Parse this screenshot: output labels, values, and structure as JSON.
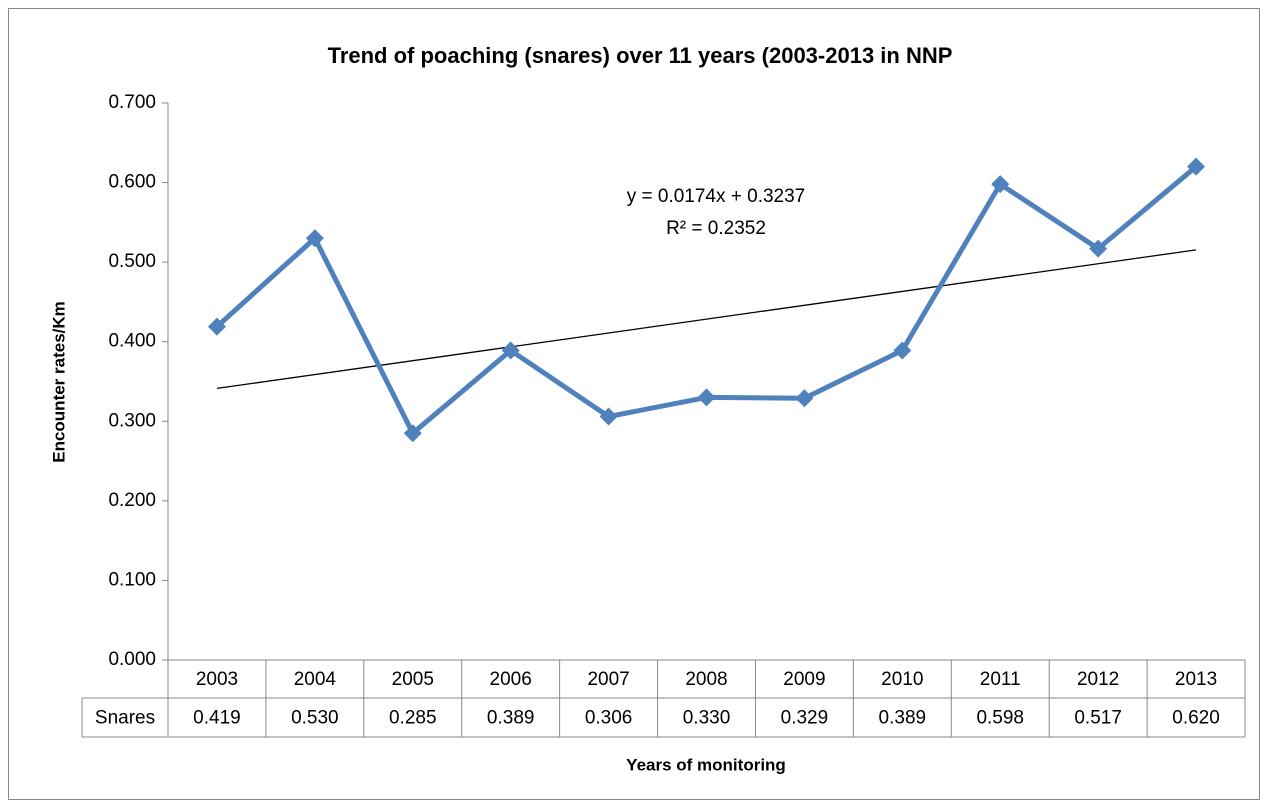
{
  "chart_data": {
    "type": "line",
    "title": "Trend of poaching (snares) over 11 years (2003-2013 in NNP",
    "x_label": "Years of monitoring",
    "y_label": "Encounter rates/Km",
    "categories": [
      "2003",
      "2004",
      "2005",
      "2006",
      "2007",
      "2008",
      "2009",
      "2010",
      "2011",
      "2012",
      "2013"
    ],
    "series": [
      {
        "name": "Snares",
        "color": "#4f81bd",
        "values": [
          0.419,
          0.53,
          0.285,
          0.389,
          0.306,
          0.33,
          0.329,
          0.389,
          0.598,
          0.517,
          0.62
        ],
        "value_labels": [
          "0.419",
          "0.530",
          "0.285",
          "0.389",
          "0.306",
          "0.330",
          "0.329",
          "0.389",
          "0.598",
          "0.517",
          "0.620"
        ]
      }
    ],
    "annotations": [
      "y = 0.0174x + 0.3237",
      "R² = 0.2352"
    ],
    "ylim": [
      0,
      0.7
    ],
    "yticks": [
      {
        "value": 0,
        "label": "0.000"
      },
      {
        "value": 0.1,
        "label": "0.100"
      },
      {
        "value": 0.2,
        "label": "0.200"
      },
      {
        "value": 0.3,
        "label": "0.300"
      },
      {
        "value": 0.4,
        "label": "0.400"
      },
      {
        "value": 0.5,
        "label": "0.500"
      },
      {
        "value": 0.6,
        "label": "0.600"
      },
      {
        "value": 0.7,
        "label": "0.700"
      }
    ],
    "grid": false,
    "trendline": true
  }
}
